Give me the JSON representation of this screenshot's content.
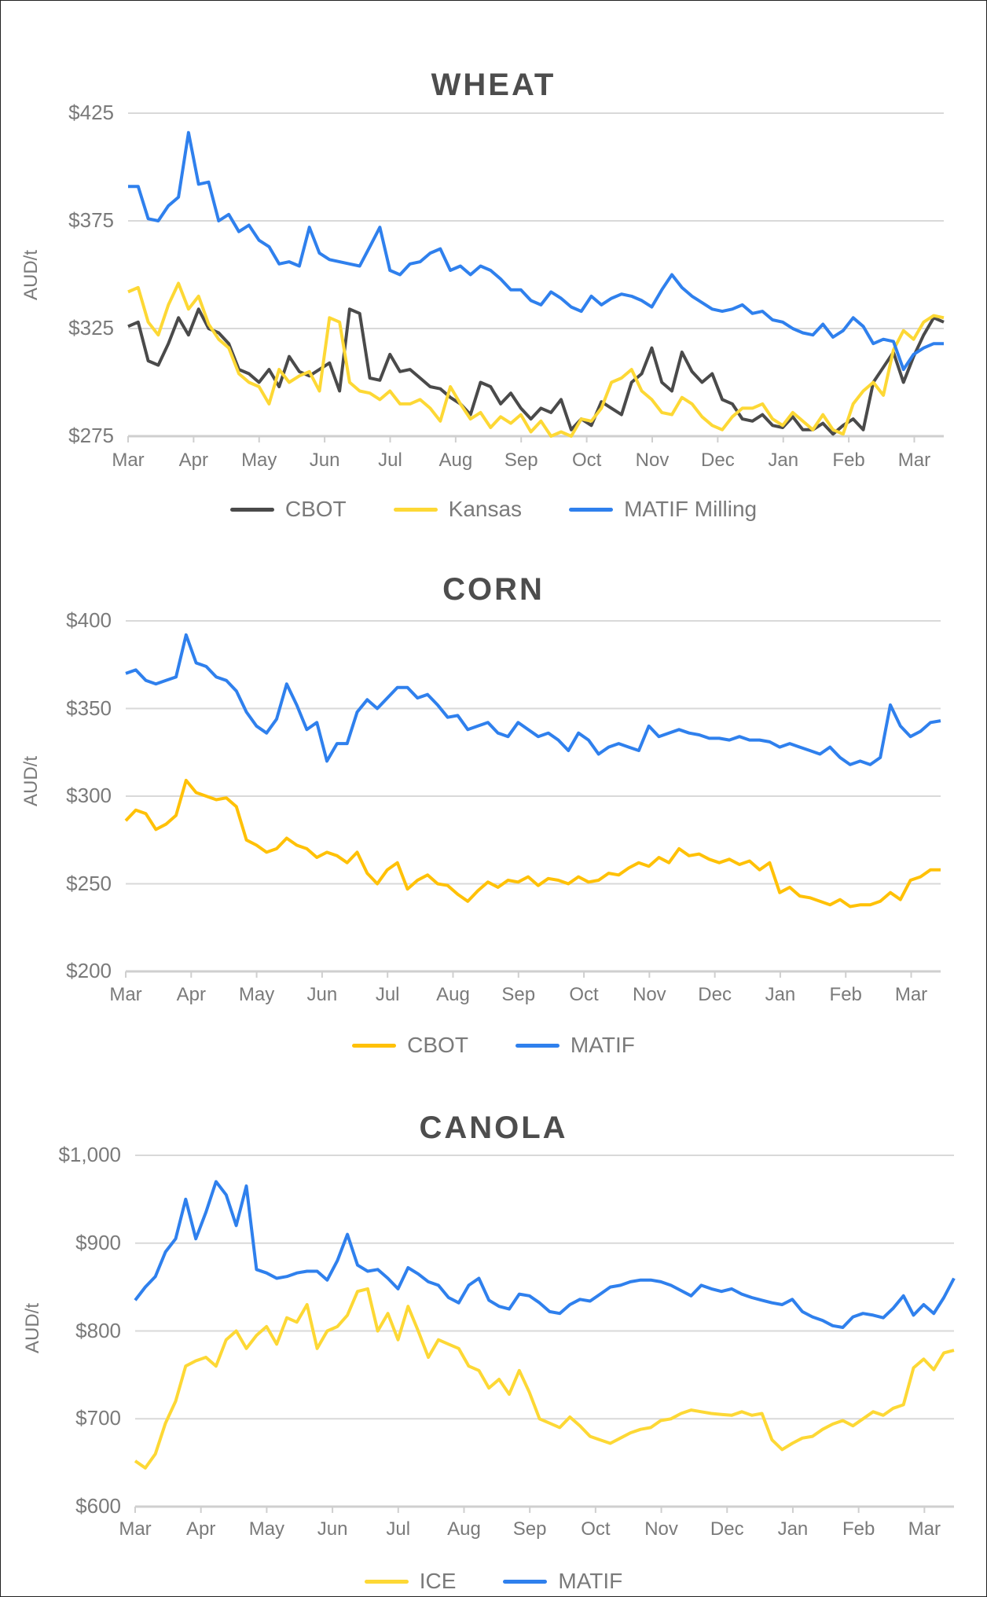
{
  "chart_data": [
    {
      "type": "line",
      "title": "WHEAT",
      "ylabel": "AUD/t",
      "xlabel": "",
      "ylim": [
        275,
        425
      ],
      "yticks": [
        "$425",
        "$375",
        "$325",
        "$275"
      ],
      "ytick_values": [
        425,
        375,
        325,
        275
      ],
      "x_ticks": [
        "Mar",
        "Apr",
        "May",
        "Jun",
        "Jul",
        "Aug",
        "Sep",
        "Oct",
        "Nov",
        "Dec",
        "Jan",
        "Feb",
        "Mar"
      ],
      "grid": true,
      "legend_position": "bottom",
      "series": [
        {
          "name": "CBOT",
          "color": "#4a4a4a",
          "values": [
            326,
            328,
            310,
            308,
            318,
            330,
            322,
            334,
            325,
            323,
            318,
            306,
            304,
            300,
            306,
            298,
            312,
            305,
            303,
            306,
            309,
            296,
            334,
            332,
            302,
            301,
            313,
            305,
            306,
            302,
            298,
            297,
            293,
            290,
            285,
            300,
            298,
            290,
            295,
            288,
            283,
            288,
            286,
            292,
            278,
            283,
            280,
            291,
            288,
            285,
            300,
            304,
            316,
            300,
            296,
            314,
            305,
            300,
            304,
            292,
            290,
            283,
            282,
            285,
            280,
            279,
            284,
            278,
            278,
            281,
            276,
            280,
            283,
            278,
            300,
            307,
            314,
            300,
            312,
            322,
            330,
            328
          ]
        },
        {
          "name": "Kansas",
          "color": "#fdd835",
          "values": [
            342,
            344,
            328,
            322,
            336,
            346,
            334,
            340,
            327,
            320,
            316,
            304,
            300,
            298,
            290,
            306,
            300,
            303,
            305,
            296,
            330,
            328,
            300,
            296,
            295,
            292,
            296,
            290,
            290,
            292,
            288,
            282,
            298,
            290,
            283,
            286,
            279,
            284,
            281,
            285,
            277,
            282,
            274,
            277,
            274,
            283,
            282,
            288,
            300,
            302,
            306,
            296,
            292,
            286,
            285,
            293,
            290,
            284,
            280,
            278,
            284,
            288,
            288,
            290,
            283,
            280,
            286,
            282,
            278,
            285,
            278,
            276,
            290,
            296,
            300,
            294,
            315,
            324,
            320,
            328,
            331,
            330
          ]
        },
        {
          "name": "MATIF Milling",
          "color": "#2f80ed",
          "values": [
            391,
            391,
            376,
            375,
            382,
            386,
            416,
            392,
            393,
            375,
            378,
            370,
            373,
            366,
            363,
            355,
            356,
            354,
            372,
            360,
            357,
            356,
            355,
            354,
            363,
            372,
            352,
            350,
            355,
            356,
            360,
            362,
            352,
            354,
            350,
            354,
            352,
            348,
            343,
            343,
            338,
            336,
            342,
            339,
            335,
            333,
            340,
            336,
            339,
            341,
            340,
            338,
            335,
            343,
            350,
            344,
            340,
            337,
            334,
            333,
            334,
            336,
            332,
            333,
            329,
            328,
            325,
            323,
            322,
            327,
            321,
            324,
            330,
            326,
            318,
            320,
            319,
            306,
            313,
            316,
            318,
            318
          ]
        }
      ]
    },
    {
      "type": "line",
      "title": "CORN",
      "ylabel": "AUD/t",
      "xlabel": "",
      "ylim": [
        200,
        400
      ],
      "yticks": [
        "$400",
        "$350",
        "$300",
        "$250",
        "$200"
      ],
      "ytick_values": [
        400,
        350,
        300,
        250,
        200
      ],
      "x_ticks": [
        "Mar",
        "Apr",
        "May",
        "Jun",
        "Jul",
        "Aug",
        "Sep",
        "Oct",
        "Nov",
        "Dec",
        "Jan",
        "Feb",
        "Mar"
      ],
      "grid": true,
      "legend_position": "bottom",
      "series": [
        {
          "name": "CBOT",
          "color": "#ffc107",
          "values": [
            286,
            292,
            290,
            281,
            284,
            289,
            309,
            302,
            300,
            298,
            299,
            294,
            275,
            272,
            268,
            270,
            276,
            272,
            270,
            265,
            268,
            266,
            262,
            268,
            256,
            250,
            258,
            262,
            247,
            252,
            255,
            250,
            249,
            244,
            240,
            246,
            251,
            248,
            252,
            251,
            254,
            249,
            253,
            252,
            250,
            254,
            251,
            252,
            256,
            255,
            259,
            262,
            260,
            265,
            262,
            270,
            266,
            267,
            264,
            262,
            264,
            261,
            263,
            258,
            262,
            245,
            248,
            243,
            242,
            240,
            238,
            241,
            237,
            238,
            238,
            240,
            245,
            241,
            252,
            254,
            258,
            258
          ]
        },
        {
          "name": "MATIF",
          "color": "#2f80ed",
          "values": [
            370,
            372,
            366,
            364,
            366,
            368,
            392,
            376,
            374,
            368,
            366,
            360,
            348,
            340,
            336,
            344,
            364,
            352,
            338,
            342,
            320,
            330,
            330,
            348,
            355,
            350,
            356,
            362,
            362,
            356,
            358,
            352,
            345,
            346,
            338,
            340,
            342,
            336,
            334,
            342,
            338,
            334,
            336,
            332,
            326,
            336,
            332,
            324,
            328,
            330,
            328,
            326,
            340,
            334,
            336,
            338,
            336,
            335,
            333,
            333,
            332,
            334,
            332,
            332,
            331,
            328,
            330,
            328,
            326,
            324,
            328,
            322,
            318,
            320,
            318,
            322,
            352,
            340,
            334,
            337,
            342,
            343
          ]
        }
      ]
    },
    {
      "type": "line",
      "title": "CANOLA",
      "ylabel": "AUD/t",
      "xlabel": "",
      "ylim": [
        600,
        1000
      ],
      "yticks": [
        "$1,000",
        "$900",
        "$800",
        "$700",
        "$600"
      ],
      "ytick_values": [
        1000,
        900,
        800,
        700,
        600
      ],
      "x_ticks": [
        "Mar",
        "Apr",
        "May",
        "Jun",
        "Jul",
        "Aug",
        "Sep",
        "Oct",
        "Nov",
        "Dec",
        "Jan",
        "Feb",
        "Mar"
      ],
      "grid": true,
      "legend_position": "bottom",
      "series": [
        {
          "name": "ICE",
          "color": "#fdd835",
          "values": [
            652,
            644,
            660,
            695,
            720,
            760,
            766,
            770,
            760,
            790,
            800,
            780,
            795,
            805,
            785,
            815,
            810,
            830,
            780,
            800,
            805,
            818,
            845,
            848,
            800,
            820,
            790,
            828,
            800,
            770,
            790,
            785,
            780,
            760,
            755,
            735,
            745,
            728,
            755,
            730,
            700,
            695,
            690,
            702,
            692,
            680,
            676,
            672,
            678,
            684,
            688,
            690,
            698,
            700,
            706,
            710,
            708,
            706,
            705,
            704,
            708,
            704,
            706,
            676,
            665,
            672,
            678,
            680,
            688,
            694,
            698,
            692,
            700,
            708,
            704,
            712,
            716,
            758,
            768,
            756,
            775,
            778
          ]
        },
        {
          "name": "MATIF",
          "color": "#2f80ed",
          "values": [
            835,
            850,
            862,
            890,
            905,
            950,
            905,
            935,
            970,
            955,
            920,
            965,
            870,
            866,
            860,
            862,
            866,
            868,
            868,
            858,
            880,
            910,
            875,
            868,
            870,
            860,
            848,
            872,
            865,
            856,
            852,
            838,
            832,
            852,
            860,
            835,
            828,
            825,
            842,
            840,
            832,
            822,
            820,
            830,
            836,
            834,
            842,
            850,
            852,
            856,
            858,
            858,
            856,
            852,
            846,
            840,
            852,
            848,
            845,
            848,
            842,
            838,
            835,
            832,
            830,
            836,
            822,
            816,
            812,
            806,
            804,
            816,
            820,
            818,
            815,
            826,
            840,
            818,
            830,
            820,
            838,
            860
          ]
        }
      ]
    }
  ],
  "charts": {
    "wheat": {
      "title": "WHEAT",
      "y_axis_title": "AUD/t",
      "legend": [
        "CBOT",
        "Kansas",
        "MATIF Milling"
      ]
    },
    "corn": {
      "title": "CORN",
      "y_axis_title": "AUD/t",
      "legend": [
        "CBOT",
        "MATIF"
      ]
    },
    "canola": {
      "title": "CANOLA",
      "y_axis_title": "AUD/t",
      "legend": [
        "ICE",
        "MATIF"
      ]
    }
  },
  "colors": {
    "gridline": "#d9d9d9",
    "axis_text": "#7a7a7a",
    "title_text": "#4d4d4d"
  }
}
